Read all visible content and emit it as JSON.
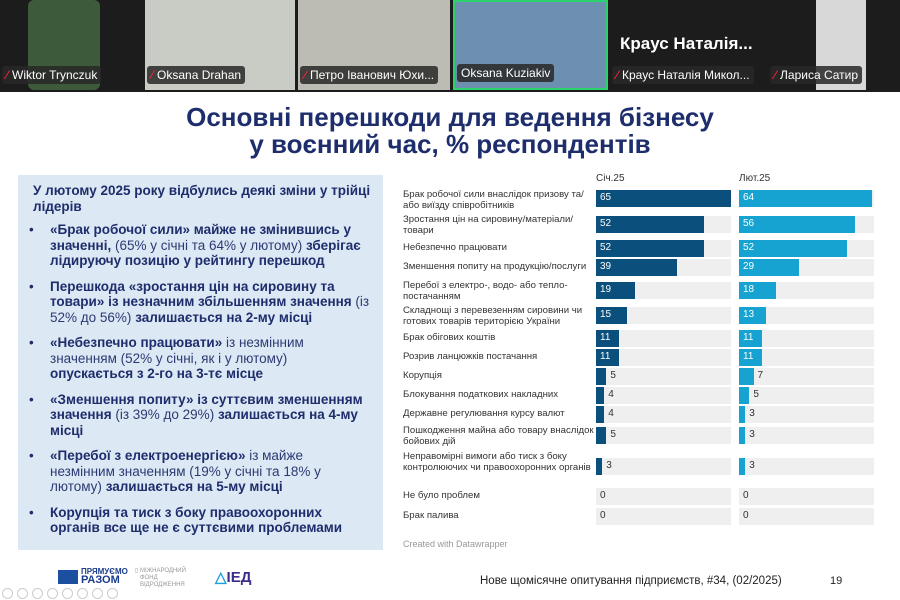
{
  "participants": [
    {
      "name": "Wiktor Trynczuk",
      "muted": true
    },
    {
      "name": "Oksana Drahan",
      "muted": true
    },
    {
      "name": "Петро Іванович Юхи...",
      "muted": true
    },
    {
      "name": "Oksana Kuziakiv",
      "muted": false,
      "active_speaker": true
    },
    {
      "name": "Краус Наталія Микол...",
      "muted": true,
      "display_name": "Краус  Наталія..."
    },
    {
      "name": "Лариса Сатир",
      "muted": true
    }
  ],
  "slide": {
    "title_line1": "Основні перешкоди для ведення бізнесу",
    "title_line2": "у воєнний час, % респондентів",
    "panel": {
      "lead": "У лютому 2025 року відбулись деякі зміни у трійці лідерів",
      "bullets": [
        [
          {
            "t": "«Брак робочої сили» майже не змінившись у значенні, ",
            "b": true
          },
          {
            "t": "(65% у січні та 64% у лютому) ",
            "b": false
          },
          {
            "t": "зберігає лідируючу позицію у рейтингу перешкод",
            "b": true
          }
        ],
        [
          {
            "t": "Перешкода «зростання цін на сировину та товари» із незначним збільшенням значення ",
            "b": true
          },
          {
            "t": "(із 52% до 56%) ",
            "b": false
          },
          {
            "t": "залишається на 2-му місці",
            "b": true
          }
        ],
        [
          {
            "t": "«Небезпечно працювати» ",
            "b": true
          },
          {
            "t": "із незмінним значенням (52% у січні, як і у лютому) ",
            "b": false
          },
          {
            "t": "опускається з 2-го на 3-тє місце",
            "b": true
          }
        ],
        [
          {
            "t": "«Зменшення попиту» із суттєвим зменшенням значення ",
            "b": true
          },
          {
            "t": "(із 39% до 29%) ",
            "b": false
          },
          {
            "t": "залишається на 4-му місці",
            "b": true
          }
        ],
        [
          {
            "t": "«Перебої з електроенергією» ",
            "b": true
          },
          {
            "t": "із майже незмінним значенням (19% у січні та 18% у лютому) ",
            "b": false
          },
          {
            "t": "залишається на 5-му місці",
            "b": true
          }
        ],
        [
          {
            "t": "Корупція та тиск з боку правоохоронних органів все ще не є суттєвими проблемами",
            "b": true
          }
        ]
      ]
    },
    "credit": "Created with Datawrapper",
    "footer": "Нове щомісячне опитування підприємств, #34, (02/2025)",
    "page_number": "19",
    "logos": [
      "ПРЯМУЄМО РАЗОМ",
      "МІЖНАРОДНИЙ ФОНД ВІДРОДЖЕННЯ",
      "ІЕД"
    ]
  },
  "chart_data": {
    "type": "bar",
    "orientation": "horizontal",
    "columns": [
      "Січ.25",
      "Лют.25"
    ],
    "colors": {
      "Січ.25": "#0b4f7c",
      "Лют.25": "#17a3d1",
      "track": "#efefef"
    },
    "xlim": [
      0,
      65
    ],
    "categories": [
      "Брак робочої сили внаслідок призову та/ або виїзду співробітників",
      "Зростання цін на сировину/матеріали/ товари",
      "Небезпечно працювати",
      "Зменшення попиту на продукцію/послуги",
      "Перебої з електро-, водо- або тепло- постачанням",
      "Складнощі з перевезенням сировини чи готових товарів територією України",
      "Брак обігових коштів",
      "Розрив ланцюжків постачання",
      "Корупція",
      "Блокування податкових накладних",
      "Державне регулювання курсу валют",
      "Пошкодження майна або товару внаслідок бойових дій",
      "Неправомірні вимоги або тиск з боку контролюючих чи правоохоронних органів",
      "Не було проблем",
      "Брак палива"
    ],
    "series": [
      {
        "name": "Січ.25",
        "values": [
          65,
          52,
          52,
          39,
          19,
          15,
          11,
          11,
          5,
          4,
          4,
          5,
          3,
          0,
          0
        ]
      },
      {
        "name": "Лют.25",
        "values": [
          64,
          56,
          52,
          29,
          18,
          13,
          11,
          11,
          7,
          5,
          3,
          3,
          3,
          0,
          0
        ]
      }
    ]
  }
}
